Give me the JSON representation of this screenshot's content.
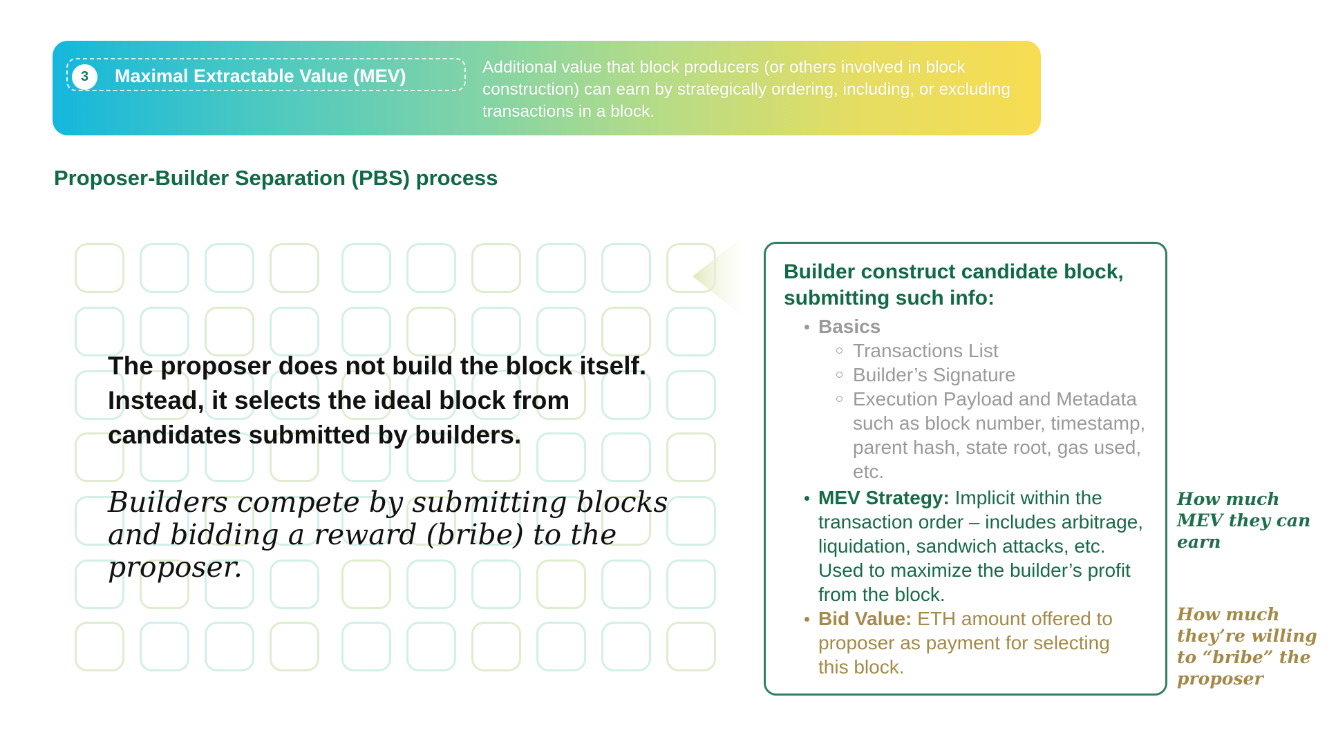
{
  "header": {
    "step_number": "3",
    "title": "Maximal Extractable Value (MEV)",
    "description": "Additional value that block producers (or others involved in block construction) can earn by strategically ordering, including, or excluding transactions in a block."
  },
  "section": {
    "title": "Proposer-Builder Separation (PBS) process"
  },
  "left": {
    "main_statement": "The proposer does not build the block itself. Instead, it selects the ideal block from candidates submitted by builders.",
    "sub_statement": "Builders compete by submitting blocks and bidding a reward (bribe) to the proposer."
  },
  "info_box": {
    "heading": "Builder construct candidate block, submitting such info:",
    "basics_label": "Basics",
    "basics_items": [
      "Transactions List",
      "Builder’s Signature",
      "Execution Payload and Metadata such as block number, timestamp, parent hash, state root, gas used, etc."
    ],
    "mev_label": "MEV Strategy:",
    "mev_text": "Implicit within the transaction order – includes arbitrage, liquidation, sandwich attacks, etc. Used to maximize the builder’s profit from the block.",
    "bid_label": "Bid Value:",
    "bid_text": "ETH amount offered to proposer as payment for selecting this block."
  },
  "side_notes": {
    "mev_note": "How much MEV they can earn",
    "bid_note": "How much they’re willing to “bribe” the proposer"
  },
  "colors": {
    "primary_green": "#106a45",
    "gold": "#a48a48",
    "gray_text": "#9a9a9a",
    "gradient_start": "#14b7dd",
    "gradient_end": "#f7dd52"
  }
}
